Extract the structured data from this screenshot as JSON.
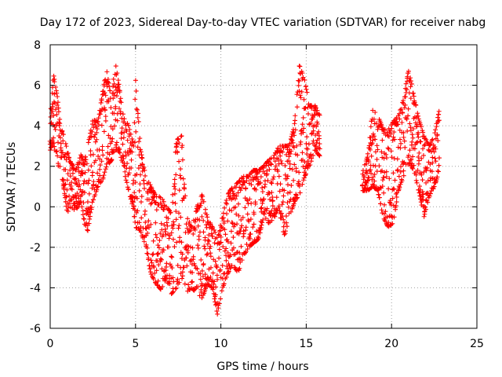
{
  "chart_data": {
    "type": "scatter",
    "title": "Day 172 of 2023, Sidereal Day-to-day VTEC variation (SDTVAR) for receiver nabg",
    "xlabel": "GPS time / hours",
    "ylabel": "SDTVAR / TECUs",
    "xlim": [
      0,
      25
    ],
    "ylim": [
      -6,
      8
    ],
    "xticks": [
      "0",
      "5",
      "10",
      "15",
      "20",
      "25"
    ],
    "yticks": [
      "-6",
      "-4",
      "-2",
      "0",
      "2",
      "4",
      "6",
      "8"
    ],
    "grid": true,
    "marker": "+",
    "color": "#ff0000",
    "series": [
      {
        "name": "SDTVAR",
        "envelope": [
          {
            "x": 0.0,
            "min": 2.8,
            "max": 4.5
          },
          {
            "x": 0.2,
            "min": 3.2,
            "max": 6.5
          },
          {
            "x": 0.4,
            "min": 2.2,
            "max": 5.6
          },
          {
            "x": 0.6,
            "min": 1.8,
            "max": 4.0
          },
          {
            "x": 0.8,
            "min": 0.9,
            "max": 3.5
          },
          {
            "x": 1.0,
            "min": -0.3,
            "max": 2.8
          },
          {
            "x": 1.2,
            "min": 0.0,
            "max": 2.2
          },
          {
            "x": 1.5,
            "min": -0.2,
            "max": 1.8
          },
          {
            "x": 1.8,
            "min": 0.3,
            "max": 2.6
          },
          {
            "x": 2.0,
            "min": -0.8,
            "max": 2.2
          },
          {
            "x": 2.2,
            "min": -1.2,
            "max": 3.0
          },
          {
            "x": 2.5,
            "min": 0.3,
            "max": 4.3
          },
          {
            "x": 2.8,
            "min": 1.0,
            "max": 4.2
          },
          {
            "x": 3.1,
            "min": 1.4,
            "max": 5.8
          },
          {
            "x": 3.3,
            "min": 2.0,
            "max": 6.8
          },
          {
            "x": 3.6,
            "min": 2.3,
            "max": 5.2
          },
          {
            "x": 3.8,
            "min": 2.8,
            "max": 7.2
          },
          {
            "x": 4.0,
            "min": 2.8,
            "max": 6.2
          },
          {
            "x": 4.3,
            "min": 1.8,
            "max": 4.4
          },
          {
            "x": 4.6,
            "min": 0.8,
            "max": 4.0
          },
          {
            "x": 4.9,
            "min": -0.2,
            "max": 3.0
          },
          {
            "x": 5.0,
            "min": -1.0,
            "max": 6.3
          },
          {
            "x": 5.3,
            "min": -1.2,
            "max": 2.8
          },
          {
            "x": 5.6,
            "min": -2.0,
            "max": 1.5
          },
          {
            "x": 5.9,
            "min": -3.3,
            "max": 1.0
          },
          {
            "x": 6.2,
            "min": -3.8,
            "max": 0.5
          },
          {
            "x": 6.5,
            "min": -4.1,
            "max": 0.5
          },
          {
            "x": 6.8,
            "min": -3.5,
            "max": 0.0
          },
          {
            "x": 7.1,
            "min": -4.3,
            "max": -0.3
          },
          {
            "x": 7.4,
            "min": -4.0,
            "max": 3.3
          },
          {
            "x": 7.7,
            "min": -3.5,
            "max": 3.5
          },
          {
            "x": 8.0,
            "min": -4.2,
            "max": -0.5
          },
          {
            "x": 8.3,
            "min": -4.0,
            "max": -1.0
          },
          {
            "x": 8.6,
            "min": -4.3,
            "max": 0.0
          },
          {
            "x": 8.9,
            "min": -4.5,
            "max": 0.6
          },
          {
            "x": 9.2,
            "min": -3.8,
            "max": -0.5
          },
          {
            "x": 9.5,
            "min": -4.0,
            "max": -1.0
          },
          {
            "x": 9.8,
            "min": -5.3,
            "max": -1.5
          },
          {
            "x": 10.1,
            "min": -4.0,
            "max": -0.5
          },
          {
            "x": 10.4,
            "min": -3.3,
            "max": 0.6
          },
          {
            "x": 10.7,
            "min": -2.8,
            "max": 1.0
          },
          {
            "x": 11.0,
            "min": -3.3,
            "max": 1.2
          },
          {
            "x": 11.3,
            "min": -2.5,
            "max": 1.5
          },
          {
            "x": 11.6,
            "min": -2.0,
            "max": 1.5
          },
          {
            "x": 11.9,
            "min": -1.8,
            "max": 1.8
          },
          {
            "x": 12.2,
            "min": -1.6,
            "max": 1.8
          },
          {
            "x": 12.5,
            "min": -0.5,
            "max": 2.0
          },
          {
            "x": 12.8,
            "min": -0.8,
            "max": 2.3
          },
          {
            "x": 13.1,
            "min": -0.6,
            "max": 2.5
          },
          {
            "x": 13.4,
            "min": 0.0,
            "max": 3.0
          },
          {
            "x": 13.7,
            "min": -1.5,
            "max": 3.0
          },
          {
            "x": 14.0,
            "min": -0.5,
            "max": 3.0
          },
          {
            "x": 14.3,
            "min": 0.2,
            "max": 4.0
          },
          {
            "x": 14.6,
            "min": 0.6,
            "max": 7.0
          },
          {
            "x": 14.9,
            "min": 1.5,
            "max": 6.3
          },
          {
            "x": 15.2,
            "min": 2.0,
            "max": 5.0
          },
          {
            "x": 15.5,
            "min": 2.8,
            "max": 5.0
          },
          {
            "x": 15.8,
            "min": 2.5,
            "max": 4.5
          }
        ],
        "envelope_2": [
          {
            "x": 18.3,
            "min": 0.8,
            "max": 1.7
          },
          {
            "x": 18.6,
            "min": 0.8,
            "max": 2.5
          },
          {
            "x": 18.9,
            "min": 1.0,
            "max": 4.8
          },
          {
            "x": 19.2,
            "min": 0.8,
            "max": 4.5
          },
          {
            "x": 19.5,
            "min": -0.5,
            "max": 3.8
          },
          {
            "x": 19.8,
            "min": -1.0,
            "max": 3.8
          },
          {
            "x": 20.1,
            "min": -0.8,
            "max": 4.2
          },
          {
            "x": 20.4,
            "min": 0.8,
            "max": 4.5
          },
          {
            "x": 20.7,
            "min": 1.5,
            "max": 5.3
          },
          {
            "x": 21.0,
            "min": 2.2,
            "max": 6.8
          },
          {
            "x": 21.3,
            "min": 1.8,
            "max": 5.5
          },
          {
            "x": 21.6,
            "min": 0.8,
            "max": 4.3
          },
          {
            "x": 21.9,
            "min": -0.5,
            "max": 3.5
          },
          {
            "x": 22.2,
            "min": 0.5,
            "max": 3.0
          },
          {
            "x": 22.5,
            "min": 1.0,
            "max": 3.5
          },
          {
            "x": 22.8,
            "min": 1.8,
            "max": 4.8
          }
        ]
      }
    ]
  }
}
